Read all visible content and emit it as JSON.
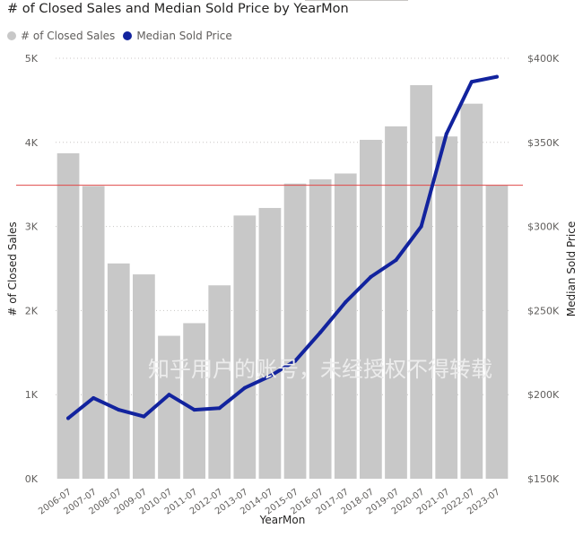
{
  "title": "# of Closed Sales and Median Sold Price by YearMon",
  "legend": [
    {
      "label": "# of Closed Sales",
      "color": "#c8c8c8"
    },
    {
      "label": "Median Sold Price",
      "color": "#12239e"
    }
  ],
  "watermark": "知乎用户的账号，未经授权不得转载",
  "colors": {
    "bar": "#c8c8c8",
    "line": "#12239e",
    "reference_line": "#e04848",
    "grid": "#c8c6c4",
    "axis_text": "#605e5c"
  },
  "chart_data": {
    "type": "bar+line",
    "title": "# of Closed Sales and Median Sold Price by YearMon",
    "xlabel": "YearMon",
    "ylabel_left": "# of Closed Sales",
    "ylabel_right": "Median Sold Price",
    "categories": [
      "2006-07",
      "2007-07",
      "2008-07",
      "2009-07",
      "2010-07",
      "2011-07",
      "2012-07",
      "2013-07",
      "2014-07",
      "2015-07",
      "2016-07",
      "2017-07",
      "2018-07",
      "2019-07",
      "2020-07",
      "2021-07",
      "2022-07",
      "2023-07"
    ],
    "series": [
      {
        "name": "# of Closed Sales",
        "type": "bar",
        "axis": "left",
        "values": [
          3870,
          3480,
          2560,
          2430,
          1700,
          1850,
          2300,
          3130,
          3220,
          3510,
          3560,
          3630,
          4030,
          4190,
          4680,
          4070,
          4460,
          3490
        ]
      },
      {
        "name": "Median Sold Price",
        "type": "line",
        "axis": "right",
        "values": [
          186000,
          198000,
          191000,
          187000,
          200000,
          191000,
          192000,
          204000,
          211000,
          220000,
          237000,
          255000,
          270000,
          280000,
          300000,
          355000,
          386000,
          389000
        ]
      }
    ],
    "reference_line": {
      "axis": "left",
      "value": 3490
    },
    "ylim_left": [
      0,
      5000
    ],
    "yticks_left": [
      0,
      1000,
      2000,
      3000,
      4000,
      5000
    ],
    "ytick_labels_left": [
      "0K",
      "1K",
      "2K",
      "3K",
      "4K",
      "5K"
    ],
    "ylim_right": [
      150000,
      400000
    ],
    "yticks_right": [
      150000,
      200000,
      250000,
      300000,
      350000,
      400000
    ],
    "ytick_labels_right": [
      "$150K",
      "$200K",
      "$250K",
      "$300K",
      "$350K",
      "$400K"
    ],
    "grid": true
  }
}
